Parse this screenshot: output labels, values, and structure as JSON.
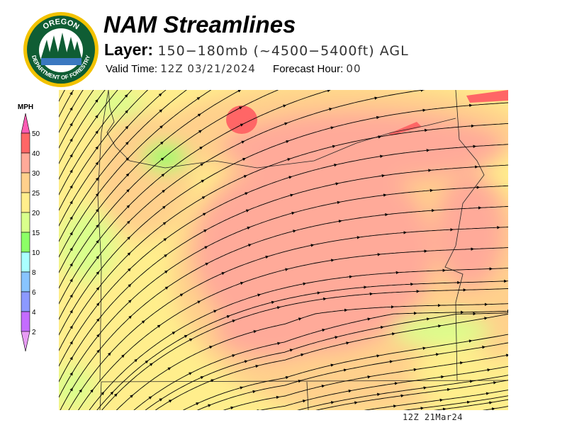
{
  "header": {
    "title": "NAM Streamlines",
    "layer_label": "Layer:",
    "layer_value": "150−180mb (~4500−5400ft) AGL",
    "valid_label": "Valid Time:",
    "valid_value": "12Z 03/21/2024",
    "forecast_label": "Forecast Hour:",
    "forecast_value": "00"
  },
  "logo": {
    "top_text": "OREGON",
    "bottom_text": "DEPARTMENT OF FORESTRY"
  },
  "legend": {
    "unit": "MPH",
    "ticks": [
      "50",
      "40",
      "30",
      "25",
      "20",
      "15",
      "10",
      "8",
      "6",
      "4",
      "2"
    ],
    "colors": [
      "#ff6666",
      "#ffaa99",
      "#ffd08c",
      "#ffee8c",
      "#d9ff8c",
      "#8cff66",
      "#aaffff",
      "#88c4ff",
      "#8c99ff",
      "#c46cff"
    ],
    "overflow_color": "#ff5cb4",
    "underflow_color": "#e89cf4"
  },
  "map": {
    "timestamp": "12Z 21Mar24",
    "field": "wind speed streamlines"
  }
}
